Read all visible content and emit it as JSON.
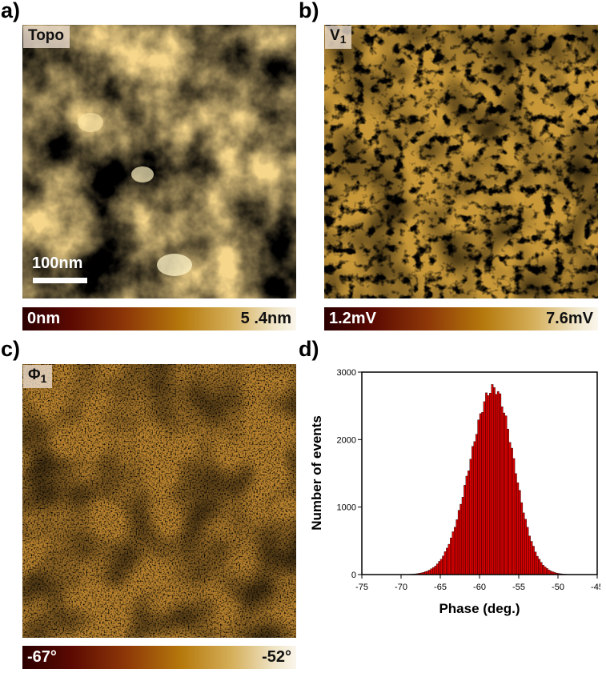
{
  "panels": {
    "a": {
      "letter": "a)",
      "label": "Topo",
      "scalebar": "100nm",
      "cbar_min": "0nm",
      "cbar_max": "5 .4nm"
    },
    "b": {
      "letter": "b)",
      "label_main": "V",
      "label_sub": "1",
      "cbar_min": "1.2mV",
      "cbar_max": "7.6mV"
    },
    "c": {
      "letter": "c)",
      "label_main": "Φ",
      "label_sub": "1",
      "cbar_min": "-67°",
      "cbar_max": "-52°"
    },
    "d": {
      "letter": "d)"
    }
  },
  "colors": {
    "map_dark": "#3a0800",
    "map_mid": "#a86a14",
    "map_light": "#f3e8cc",
    "bars": "#d40000"
  },
  "chart_data": {
    "type": "bar",
    "xlabel": "Phase (deg.)",
    "ylabel": "Number of events",
    "xlim": [
      -75,
      -45
    ],
    "ylim": [
      0,
      3000
    ],
    "xticks": [
      -75,
      -70,
      -65,
      -60,
      -55,
      -50,
      -45
    ],
    "yticks": [
      0,
      1000,
      2000,
      3000
    ],
    "bin_width": 0.25,
    "peak": {
      "x": -58.2,
      "y": 2760
    },
    "spread": {
      "left": 3.0,
      "right": 2.6
    },
    "x_range": [
      -73,
      -48
    ]
  }
}
